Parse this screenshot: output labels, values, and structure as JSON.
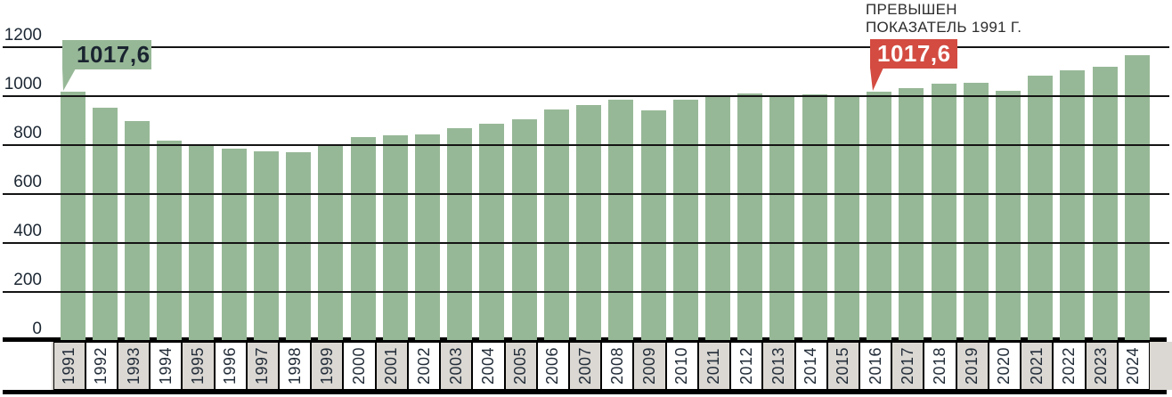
{
  "note": {
    "line1": "ПРЕВЫШЕН",
    "line2": "ПОКАЗАТЕЛЬ 1991 Г."
  },
  "callouts": {
    "start": {
      "year": "1991",
      "value": "1017,6"
    },
    "exceeded": {
      "year": "2016",
      "value": "1017,6"
    }
  },
  "colors": {
    "bar_green": "#97b897",
    "callout_green": "#97b897",
    "callout_red": "#d34b41",
    "strip_gray": "#dbd8d3",
    "grid_black": "#141414",
    "dark_text": "#1c2733"
  },
  "chart_data": {
    "type": "bar",
    "title": "",
    "xlabel": "",
    "ylabel": "",
    "categories": [
      "1991",
      "1992",
      "1993",
      "1994",
      "1995",
      "1996",
      "1997",
      "1998",
      "1999",
      "2000",
      "2001",
      "2002",
      "2003",
      "2004",
      "2005",
      "2006",
      "2007",
      "2008",
      "2009",
      "2010",
      "2011",
      "2012",
      "2013",
      "2014",
      "2015",
      "2016",
      "2017",
      "2018",
      "2019",
      "2020",
      "2021",
      "2022",
      "2023",
      "2024"
    ],
    "values": [
      1017.6,
      955,
      897,
      820,
      801,
      786,
      774,
      770,
      797,
      833,
      840,
      845,
      870,
      889,
      905,
      948,
      966,
      987,
      942,
      988,
      1006,
      1012,
      1005,
      1010,
      1004,
      1017.6,
      1034,
      1052,
      1054,
      1022,
      1086,
      1105,
      1123,
      1170
    ],
    "ylim": [
      0,
      1200
    ],
    "yticks": [
      0,
      200,
      400,
      600,
      800,
      1000,
      1200
    ],
    "grid": true,
    "legend": false,
    "annotations": [
      {
        "year": "1991",
        "label": "1017,6",
        "style": "green-flag"
      },
      {
        "year": "2016",
        "label": "1017,6",
        "style": "red-flag",
        "note": "ПРЕВЫШЕН ПОКАЗАТЕЛЬ 1991 Г."
      }
    ]
  }
}
